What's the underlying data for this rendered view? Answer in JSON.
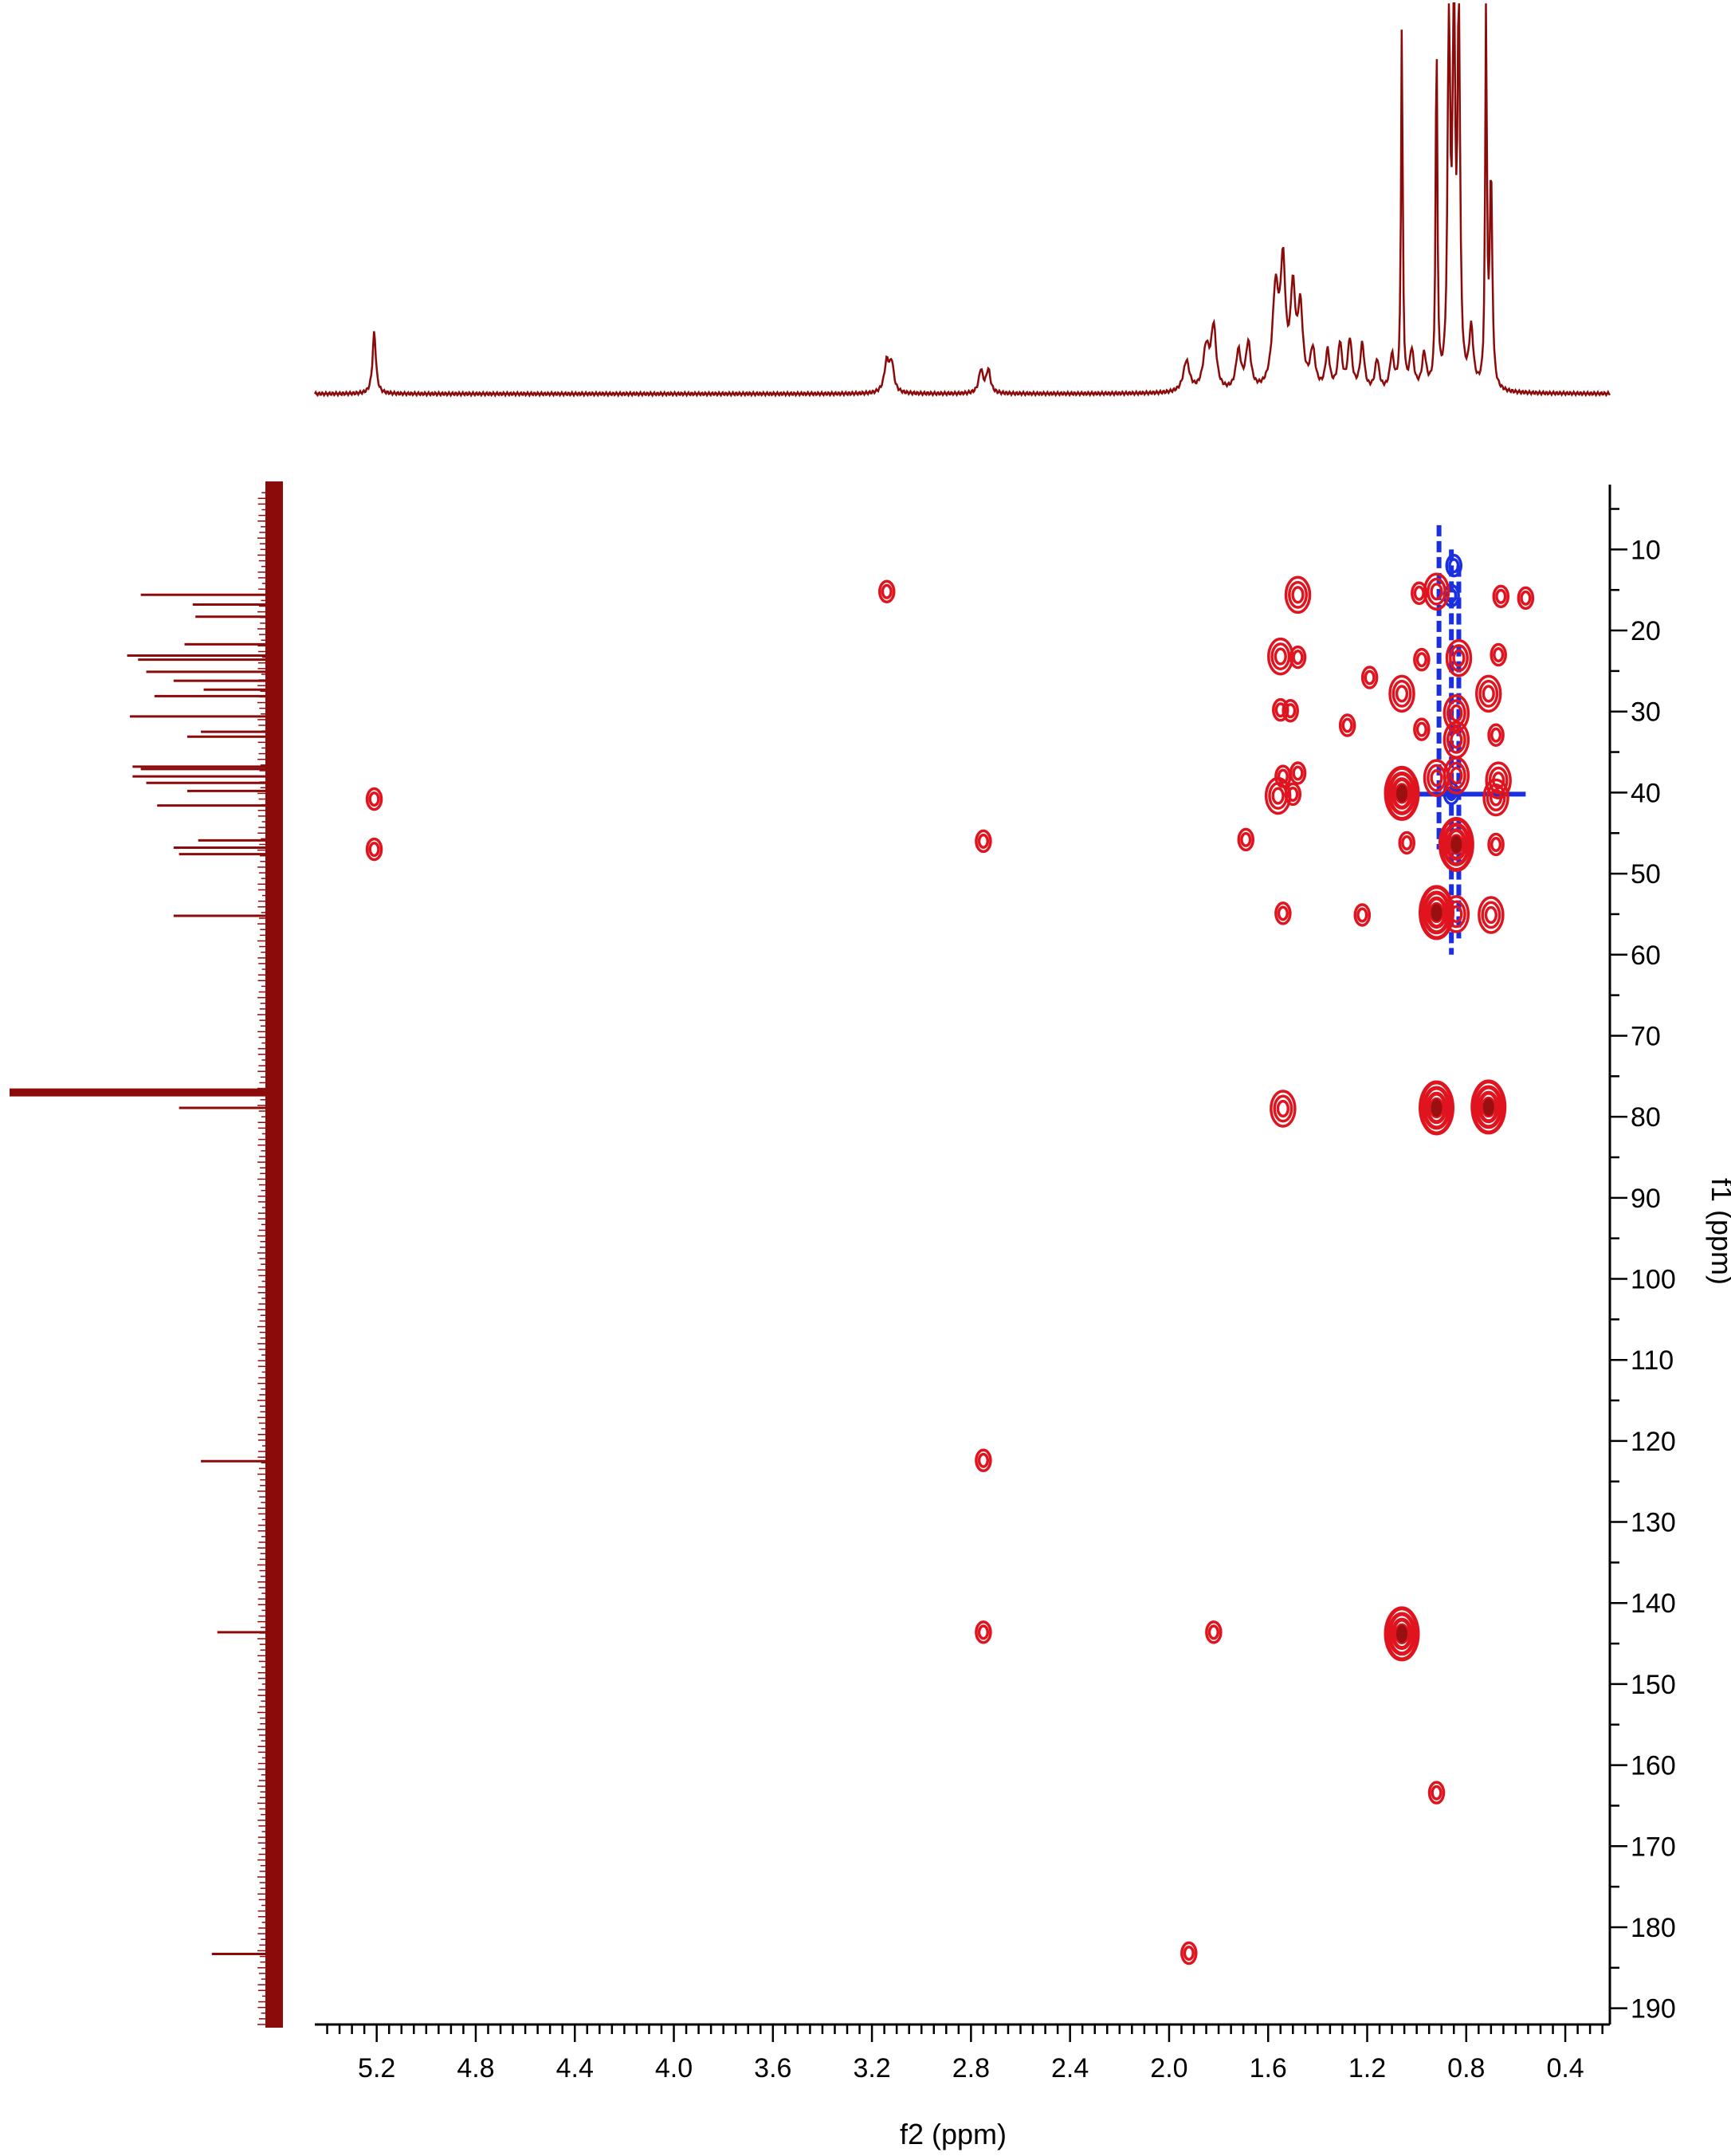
{
  "chart_data": {
    "type": "hmbc_2d_nmr_contour",
    "xlabel": "f2 (ppm)",
    "ylabel": "f1 (ppm)",
    "xlim": [
      5.45,
      0.22
    ],
    "ylim": [
      2,
      192
    ],
    "x_ticks": [
      "5.2",
      "4.8",
      "4.4",
      "4.0",
      "3.6",
      "3.2",
      "2.8",
      "2.4",
      "2.0",
      "1.6",
      "1.2",
      "0.8",
      "0.4"
    ],
    "x_tick_values": [
      5.2,
      4.8,
      4.4,
      4.0,
      3.6,
      3.2,
      2.8,
      2.4,
      2.0,
      1.6,
      1.2,
      0.8,
      0.4
    ],
    "y_ticks": [
      "10",
      "20",
      "30",
      "40",
      "50",
      "60",
      "70",
      "80",
      "90",
      "100",
      "110",
      "120",
      "130",
      "140",
      "150",
      "160",
      "170",
      "180",
      "190"
    ],
    "y_tick_values": [
      10,
      20,
      30,
      40,
      50,
      60,
      70,
      80,
      90,
      100,
      110,
      120,
      130,
      140,
      150,
      160,
      170,
      180,
      190
    ],
    "colors": {
      "positive": "#e0141e",
      "negative": "#1a2fe0",
      "projection": "#8b0a0a"
    },
    "top_projection": {
      "baseline": 0.04,
      "peaks": [
        {
          "ppm": 5.21,
          "h": 0.16,
          "w": 0.008
        },
        {
          "ppm": 3.14,
          "h": 0.08,
          "w": 0.012
        },
        {
          "ppm": 3.12,
          "h": 0.07,
          "w": 0.01
        },
        {
          "ppm": 2.76,
          "h": 0.06,
          "w": 0.01
        },
        {
          "ppm": 2.73,
          "h": 0.06,
          "w": 0.01
        },
        {
          "ppm": 1.93,
          "h": 0.08,
          "w": 0.015
        },
        {
          "ppm": 1.85,
          "h": 0.11,
          "w": 0.015
        },
        {
          "ppm": 1.82,
          "h": 0.16,
          "w": 0.012
        },
        {
          "ppm": 1.72,
          "h": 0.1,
          "w": 0.012
        },
        {
          "ppm": 1.68,
          "h": 0.12,
          "w": 0.012
        },
        {
          "ppm": 1.57,
          "h": 0.25,
          "w": 0.015
        },
        {
          "ppm": 1.54,
          "h": 0.3,
          "w": 0.012
        },
        {
          "ppm": 1.5,
          "h": 0.24,
          "w": 0.012
        },
        {
          "ppm": 1.47,
          "h": 0.2,
          "w": 0.012
        },
        {
          "ppm": 1.42,
          "h": 0.1,
          "w": 0.012
        },
        {
          "ppm": 1.36,
          "h": 0.1,
          "w": 0.01
        },
        {
          "ppm": 1.31,
          "h": 0.12,
          "w": 0.01
        },
        {
          "ppm": 1.27,
          "h": 0.13,
          "w": 0.01
        },
        {
          "ppm": 1.22,
          "h": 0.12,
          "w": 0.01
        },
        {
          "ppm": 1.16,
          "h": 0.08,
          "w": 0.01
        },
        {
          "ppm": 1.1,
          "h": 0.09,
          "w": 0.01
        },
        {
          "ppm": 1.06,
          "h": 0.94,
          "w": 0.004
        },
        {
          "ppm": 1.02,
          "h": 0.1,
          "w": 0.01
        },
        {
          "ppm": 0.97,
          "h": 0.09,
          "w": 0.01
        },
        {
          "ppm": 0.92,
          "h": 0.93,
          "w": 0.004
        },
        {
          "ppm": 0.87,
          "h": 0.98,
          "w": 0.006
        },
        {
          "ppm": 0.85,
          "h": 1.0,
          "w": 0.006
        },
        {
          "ppm": 0.83,
          "h": 0.96,
          "w": 0.006
        },
        {
          "ppm": 0.78,
          "h": 0.15,
          "w": 0.01
        },
        {
          "ppm": 0.72,
          "h": 0.99,
          "w": 0.004
        },
        {
          "ppm": 0.7,
          "h": 0.55,
          "w": 0.006
        }
      ]
    },
    "left_projection": {
      "peaks": [
        {
          "ppm": 15.6,
          "h": 0.52
        },
        {
          "ppm": 16.8,
          "h": 0.33
        },
        {
          "ppm": 18.3,
          "h": 0.32
        },
        {
          "ppm": 21.7,
          "h": 0.36
        },
        {
          "ppm": 23.1,
          "h": 0.57
        },
        {
          "ppm": 23.6,
          "h": 0.53
        },
        {
          "ppm": 25.1,
          "h": 0.5
        },
        {
          "ppm": 26.2,
          "h": 0.4
        },
        {
          "ppm": 27.3,
          "h": 0.29
        },
        {
          "ppm": 28.1,
          "h": 0.47
        },
        {
          "ppm": 30.6,
          "h": 0.56
        },
        {
          "ppm": 32.5,
          "h": 0.3
        },
        {
          "ppm": 33.1,
          "h": 0.35
        },
        {
          "ppm": 36.8,
          "h": 0.55
        },
        {
          "ppm": 37.1,
          "h": 0.52
        },
        {
          "ppm": 38.0,
          "h": 0.55
        },
        {
          "ppm": 38.8,
          "h": 0.5
        },
        {
          "ppm": 39.8,
          "h": 0.35
        },
        {
          "ppm": 41.6,
          "h": 0.46
        },
        {
          "ppm": 45.9,
          "h": 0.31
        },
        {
          "ppm": 46.8,
          "h": 0.4
        },
        {
          "ppm": 47.6,
          "h": 0.38
        },
        {
          "ppm": 55.2,
          "h": 0.4
        },
        {
          "ppm": 77.0,
          "h": 1.0
        },
        {
          "ppm": 78.9,
          "h": 0.38
        },
        {
          "ppm": 122.5,
          "h": 0.3
        },
        {
          "ppm": 143.6,
          "h": 0.24
        },
        {
          "ppm": 183.3,
          "h": 0.26
        }
      ]
    },
    "cross_peaks": [
      {
        "x": 3.14,
        "y": 15.2,
        "sign": "pos",
        "size": 1
      },
      {
        "x": 1.48,
        "y": 15.6,
        "sign": "pos",
        "size": 2
      },
      {
        "x": 0.92,
        "y": 15.2,
        "sign": "pos",
        "size": 2
      },
      {
        "x": 0.99,
        "y": 15.4,
        "sign": "pos",
        "size": 1
      },
      {
        "x": 0.66,
        "y": 15.8,
        "sign": "pos",
        "size": 1
      },
      {
        "x": 0.56,
        "y": 16.0,
        "sign": "pos",
        "size": 1
      },
      {
        "x": 0.86,
        "y": 15.7,
        "sign": "neg",
        "size": 1
      },
      {
        "x": 0.85,
        "y": 12.0,
        "sign": "neg",
        "size": 1
      },
      {
        "x": 1.55,
        "y": 23.2,
        "sign": "pos",
        "size": 2
      },
      {
        "x": 1.48,
        "y": 23.3,
        "sign": "pos",
        "size": 1
      },
      {
        "x": 0.83,
        "y": 23.4,
        "sign": "pos",
        "size": 2
      },
      {
        "x": 0.67,
        "y": 23.0,
        "sign": "pos",
        "size": 1
      },
      {
        "x": 0.98,
        "y": 23.6,
        "sign": "pos",
        "size": 1
      },
      {
        "x": 1.19,
        "y": 25.8,
        "sign": "pos",
        "size": 1
      },
      {
        "x": 1.06,
        "y": 27.8,
        "sign": "pos",
        "size": 2
      },
      {
        "x": 0.71,
        "y": 27.8,
        "sign": "pos",
        "size": 2
      },
      {
        "x": 0.84,
        "y": 30.2,
        "sign": "pos",
        "size": 2
      },
      {
        "x": 1.55,
        "y": 29.8,
        "sign": "pos",
        "size": 1
      },
      {
        "x": 1.51,
        "y": 29.9,
        "sign": "pos",
        "size": 1
      },
      {
        "x": 1.28,
        "y": 31.7,
        "sign": "pos",
        "size": 1
      },
      {
        "x": 0.98,
        "y": 32.2,
        "sign": "pos",
        "size": 1
      },
      {
        "x": 0.84,
        "y": 33.5,
        "sign": "pos",
        "size": 2
      },
      {
        "x": 0.68,
        "y": 32.9,
        "sign": "pos",
        "size": 1
      },
      {
        "x": 0.92,
        "y": 38.2,
        "sign": "pos",
        "size": 2
      },
      {
        "x": 0.84,
        "y": 37.9,
        "sign": "pos",
        "size": 2
      },
      {
        "x": 0.67,
        "y": 38.5,
        "sign": "pos",
        "size": 2
      },
      {
        "x": 1.48,
        "y": 37.6,
        "sign": "pos",
        "size": 1
      },
      {
        "x": 1.54,
        "y": 38.0,
        "sign": "pos",
        "size": 1
      },
      {
        "x": 1.56,
        "y": 40.4,
        "sign": "pos",
        "size": 2
      },
      {
        "x": 1.5,
        "y": 40.2,
        "sign": "pos",
        "size": 1
      },
      {
        "x": 1.06,
        "y": 40.1,
        "sign": "pos",
        "size": 3
      },
      {
        "x": 0.68,
        "y": 40.6,
        "sign": "pos",
        "size": 2
      },
      {
        "x": 0.86,
        "y": 40.1,
        "sign": "neg",
        "size": 1
      },
      {
        "x": 5.21,
        "y": 40.8,
        "sign": "pos",
        "size": 1
      },
      {
        "x": 5.21,
        "y": 47.0,
        "sign": "pos",
        "size": 1
      },
      {
        "x": 2.75,
        "y": 46.0,
        "sign": "pos",
        "size": 1
      },
      {
        "x": 1.69,
        "y": 45.8,
        "sign": "pos",
        "size": 1
      },
      {
        "x": 1.04,
        "y": 46.2,
        "sign": "pos",
        "size": 1
      },
      {
        "x": 0.84,
        "y": 46.4,
        "sign": "pos",
        "size": 3
      },
      {
        "x": 0.68,
        "y": 46.4,
        "sign": "pos",
        "size": 1
      },
      {
        "x": 1.54,
        "y": 54.9,
        "sign": "pos",
        "size": 1
      },
      {
        "x": 1.22,
        "y": 55.1,
        "sign": "pos",
        "size": 1
      },
      {
        "x": 0.92,
        "y": 54.8,
        "sign": "pos",
        "size": 3
      },
      {
        "x": 0.84,
        "y": 55.0,
        "sign": "pos",
        "size": 2
      },
      {
        "x": 0.7,
        "y": 55.1,
        "sign": "pos",
        "size": 2
      },
      {
        "x": 1.54,
        "y": 79.0,
        "sign": "pos",
        "size": 2
      },
      {
        "x": 0.92,
        "y": 78.9,
        "sign": "pos",
        "size": 3
      },
      {
        "x": 0.71,
        "y": 78.8,
        "sign": "pos",
        "size": 3
      },
      {
        "x": 2.75,
        "y": 122.4,
        "sign": "pos",
        "size": 1
      },
      {
        "x": 2.75,
        "y": 143.6,
        "sign": "pos",
        "size": 1
      },
      {
        "x": 1.82,
        "y": 143.6,
        "sign": "pos",
        "size": 1
      },
      {
        "x": 1.06,
        "y": 143.8,
        "sign": "pos",
        "size": 3
      },
      {
        "x": 0.92,
        "y": 163.4,
        "sign": "pos",
        "size": 1
      },
      {
        "x": 1.92,
        "y": 183.2,
        "sign": "pos",
        "size": 1
      }
    ],
    "negative_streaks": [
      {
        "x": 0.91,
        "y1": 7,
        "y2": 47
      },
      {
        "x": 0.86,
        "y1": 10,
        "y2": 60
      },
      {
        "x": 0.83,
        "y1": 12,
        "y2": 58
      },
      {
        "x_from": 1.02,
        "x_to": 0.56,
        "y": 40.2
      }
    ]
  }
}
